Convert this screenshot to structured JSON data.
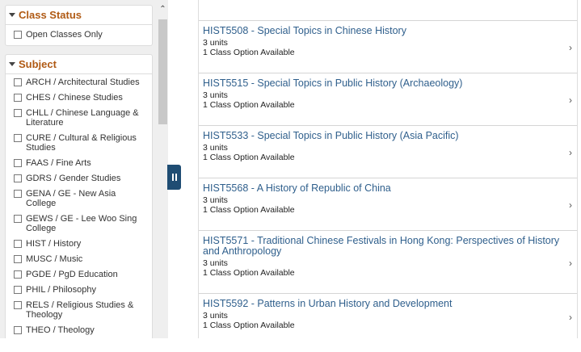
{
  "class_status": {
    "title": "Class Status",
    "items": [
      {
        "label": "Open Classes Only"
      }
    ]
  },
  "subject": {
    "title": "Subject",
    "items": [
      {
        "label": "ARCH / Architectural Studies"
      },
      {
        "label": "CHES / Chinese Studies"
      },
      {
        "label": "CHLL / Chinese Language & Literature"
      },
      {
        "label": "CURE / Cultural & Religious Studies"
      },
      {
        "label": "FAAS / Fine Arts"
      },
      {
        "label": "GDRS / Gender Studies"
      },
      {
        "label": "GENA / GE - New Asia College"
      },
      {
        "label": "GEWS / GE - Lee Woo Sing College"
      },
      {
        "label": "HIST / History"
      },
      {
        "label": "MUSC / Music"
      },
      {
        "label": "PGDE / PgD Education"
      },
      {
        "label": "PHIL / Philosophy"
      },
      {
        "label": "RELS / Religious Studies & Theology"
      },
      {
        "label": "THEO / Theology"
      }
    ]
  },
  "courses": [
    {
      "title": "HIST5508 - Special Topics in Chinese History",
      "units": "3 units",
      "options": "1 Class Option Available"
    },
    {
      "title": "HIST5515 - Special Topics in Public History (Archaeology)",
      "units": "3 units",
      "options": "1 Class Option Available"
    },
    {
      "title": "HIST5533 - Special Topics in Public History (Asia Pacific)",
      "units": "3 units",
      "options": "1 Class Option Available"
    },
    {
      "title": "HIST5568 - A History of Republic of China",
      "units": "3 units",
      "options": "1 Class Option Available"
    },
    {
      "title": "HIST5571 - Traditional Chinese Festivals in Hong Kong: Perspectives of History and Anthropology",
      "units": "3 units",
      "options": "1 Class Option Available"
    },
    {
      "title": "HIST5592 - Patterns in Urban History and Development",
      "units": "3 units",
      "options": "1 Class Option Available"
    }
  ],
  "colors": {
    "accent": "#b05a14",
    "link": "#2f5f8c",
    "toggle": "#1f4d73"
  }
}
